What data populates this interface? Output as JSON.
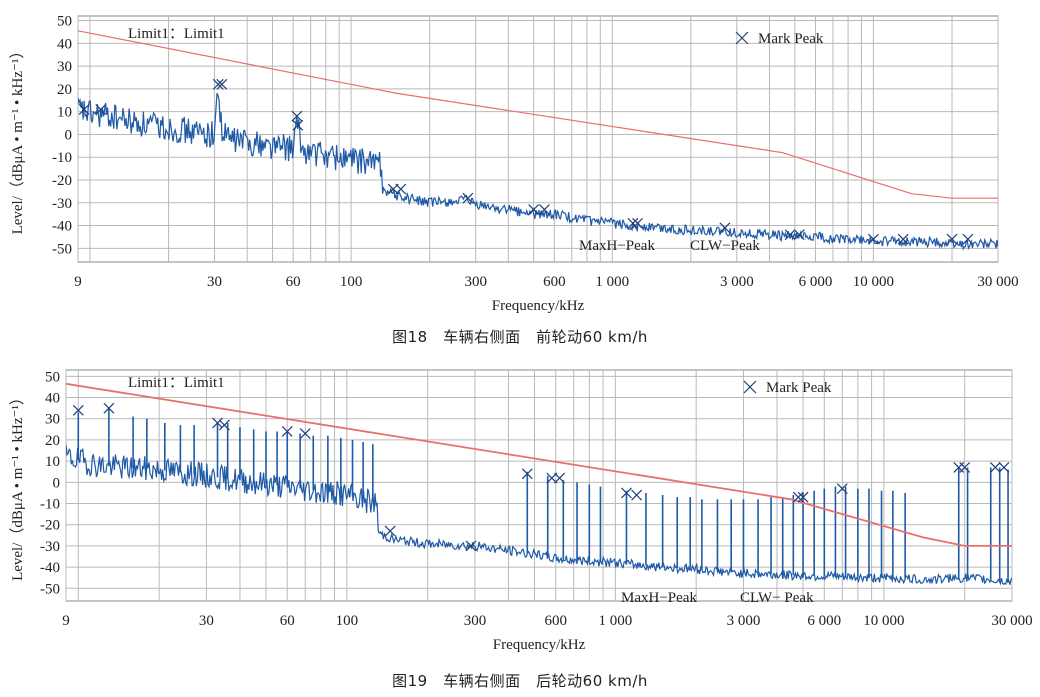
{
  "charts": [
    {
      "caption": "图18　车辆右侧面　前轮动60 km/h",
      "chart_data": {
        "type": "line",
        "x_scale": "log",
        "xlabel": "Frequency/kHz",
        "ylabel": "Level/（dBμA • m⁻¹ • kHz⁻¹）",
        "xlim": [
          9,
          30000
        ],
        "ylim": [
          -56,
          52
        ],
        "x_ticks": [
          9,
          30,
          60,
          100,
          300,
          600,
          1000,
          3000,
          6000,
          10000,
          30000
        ],
        "x_tick_labels": [
          "9",
          "30",
          "60",
          "100",
          "300",
          "600",
          "1 000",
          "3 000",
          "6 000",
          "10 000",
          "30 000"
        ],
        "y_ticks": [
          50,
          40,
          30,
          20,
          10,
          0,
          -10,
          -20,
          -30,
          -40,
          -50
        ],
        "grid": true,
        "series": [
          {
            "name": "Limit1: Limit1",
            "color": "#e8706a",
            "x": [
              9,
              150,
              4500,
              14000,
              20000,
              30000
            ],
            "y": [
              45.5,
              18,
              -8,
              -26,
              -28,
              -28
            ]
          },
          {
            "name": "MaxH-Peak / CLW-Peak",
            "color": "#1f5aa6",
            "x": [
              9,
              10,
              12,
              15,
              20,
              25,
              30,
              31,
              32,
              35,
              40,
              50,
              60,
              62,
              65,
              70,
              80,
              90,
              100,
              110,
              120,
              131,
              132,
              150,
              200,
              280,
              300,
              400,
              500,
              600,
              800,
              1000,
              1200,
              1500,
              2000,
              2700,
              3000,
              4000,
              5000,
              6000,
              8000,
              10000,
              15000,
              20000,
              25000,
              30000
            ],
            "y": [
              11,
              9,
              8,
              5,
              3,
              1,
              0,
              22,
              0,
              -2,
              -3,
              -5,
              -6,
              5,
              -7,
              -8,
              -9,
              -10,
              -11,
              -12,
              -12,
              -13,
              -24,
              -27,
              -30,
              -29,
              -31,
              -33,
              -35,
              -35,
              -38,
              -39,
              -40,
              -41,
              -42,
              -43,
              -43,
              -44,
              -45,
              -45,
              -46,
              -47,
              -47,
              -48,
              -48,
              -48
            ]
          }
        ],
        "peaks": [
          {
            "x": 9.5,
            "y": 11
          },
          {
            "x": 11,
            "y": 11
          },
          {
            "x": 31,
            "y": 22
          },
          {
            "x": 32,
            "y": 22
          },
          {
            "x": 62,
            "y": 8
          },
          {
            "x": 62.5,
            "y": 4
          },
          {
            "x": 145,
            "y": -24
          },
          {
            "x": 155,
            "y": -24
          },
          {
            "x": 280,
            "y": -28
          },
          {
            "x": 500,
            "y": -33
          },
          {
            "x": 550,
            "y": -33
          },
          {
            "x": 1200,
            "y": -39
          },
          {
            "x": 1250,
            "y": -39
          },
          {
            "x": 2700,
            "y": -41
          },
          {
            "x": 4800,
            "y": -44
          },
          {
            "x": 5200,
            "y": -44
          },
          {
            "x": 10000,
            "y": -46
          },
          {
            "x": 13000,
            "y": -46
          },
          {
            "x": 20000,
            "y": -46
          },
          {
            "x": 23000,
            "y": -46
          }
        ],
        "annotations": {
          "limit_label": "Limit1：Limit1",
          "mark_peak": "Mark Peak",
          "maxh": "MaxH−Peak",
          "clw": "CLW−Peak"
        }
      }
    },
    {
      "caption": "图19　车辆右侧面　后轮动60 km/h",
      "chart_data": {
        "type": "line",
        "x_scale": "log",
        "xlabel": "Frequency/kHz",
        "ylabel": "Level/（dBμA • m⁻¹ • kHz⁻¹）",
        "xlim": [
          9,
          30000
        ],
        "ylim": [
          -56,
          53
        ],
        "x_ticks": [
          9,
          30,
          60,
          100,
          300,
          600,
          1000,
          3000,
          6000,
          10000,
          30000
        ],
        "x_tick_labels": [
          "9",
          "30",
          "60",
          "100",
          "300",
          "600",
          "1 000",
          "3 000",
          "6 000",
          "10 000",
          "30 000"
        ],
        "y_ticks": [
          50,
          40,
          30,
          20,
          10,
          0,
          -10,
          -20,
          -30,
          -40,
          -50
        ],
        "grid": true,
        "series": [
          {
            "name": "Limit1: Limit1",
            "color": "#e8706a",
            "x": [
              9,
              4500,
              14000,
              20000,
              30000
            ],
            "y": [
              46.5,
              -8,
              -26,
              -30,
              -30
            ]
          },
          {
            "name": "MaxH-Peak / CLW-Peak",
            "color": "#1f5aa6",
            "x": [
              9,
              12,
              15,
              20,
              30,
              40,
              60,
              100,
              130,
              131,
              150,
              200,
              300,
              450,
              600,
              1000,
              1500,
              2000,
              3000,
              5000,
              8000,
              10000,
              15000,
              20000,
              25000,
              30000
            ],
            "y": [
              12,
              8,
              7,
              6,
              3,
              1,
              -2,
              -6,
              -10,
              -24,
              -27,
              -29,
              -30,
              -33,
              -36,
              -38,
              -40,
              -41,
              -43,
              -44,
              -45,
              -45,
              -46,
              -45,
              -46,
              -47
            ]
          }
        ],
        "peaks": [
          {
            "x": 10,
            "y": 34
          },
          {
            "x": 13,
            "y": 35
          },
          {
            "x": 33,
            "y": 28
          },
          {
            "x": 35,
            "y": 27
          },
          {
            "x": 60,
            "y": 24
          },
          {
            "x": 70,
            "y": 23
          },
          {
            "x": 145,
            "y": -23
          },
          {
            "x": 290,
            "y": -30
          },
          {
            "x": 470,
            "y": 4
          },
          {
            "x": 580,
            "y": 2
          },
          {
            "x": 620,
            "y": 2
          },
          {
            "x": 1100,
            "y": -5
          },
          {
            "x": 1200,
            "y": -6
          },
          {
            "x": 4800,
            "y": -7
          },
          {
            "x": 5000,
            "y": -7
          },
          {
            "x": 7000,
            "y": -3
          },
          {
            "x": 19000,
            "y": 7
          },
          {
            "x": 20000,
            "y": 7
          },
          {
            "x": 26000,
            "y": 7
          },
          {
            "x": 28000,
            "y": 7
          }
        ],
        "spikes": [
          {
            "x": 10,
            "top": 33
          },
          {
            "x": 13,
            "top": 35
          },
          {
            "x": 16,
            "top": 31
          },
          {
            "x": 18,
            "top": 30
          },
          {
            "x": 21,
            "top": 28
          },
          {
            "x": 24,
            "top": 27
          },
          {
            "x": 27,
            "top": 27
          },
          {
            "x": 33,
            "top": 28
          },
          {
            "x": 36,
            "top": 28
          },
          {
            "x": 40,
            "top": 26
          },
          {
            "x": 45,
            "top": 25
          },
          {
            "x": 50,
            "top": 24
          },
          {
            "x": 55,
            "top": 24
          },
          {
            "x": 60,
            "top": 24
          },
          {
            "x": 67,
            "top": 23
          },
          {
            "x": 75,
            "top": 22
          },
          {
            "x": 85,
            "top": 22
          },
          {
            "x": 95,
            "top": 21
          },
          {
            "x": 105,
            "top": 20
          },
          {
            "x": 115,
            "top": 19
          },
          {
            "x": 125,
            "top": 18
          },
          {
            "x": 470,
            "top": 5
          },
          {
            "x": 560,
            "top": 3
          },
          {
            "x": 640,
            "top": 1
          },
          {
            "x": 720,
            "top": 0
          },
          {
            "x": 800,
            "top": -1
          },
          {
            "x": 880,
            "top": -2
          },
          {
            "x": 1100,
            "top": -4
          },
          {
            "x": 1300,
            "top": -5
          },
          {
            "x": 1500,
            "top": -6
          },
          {
            "x": 1700,
            "top": -7
          },
          {
            "x": 1900,
            "top": -7
          },
          {
            "x": 2100,
            "top": -8
          },
          {
            "x": 2400,
            "top": -8
          },
          {
            "x": 2700,
            "top": -8
          },
          {
            "x": 3000,
            "top": -8
          },
          {
            "x": 3400,
            "top": -8
          },
          {
            "x": 3800,
            "top": -7
          },
          {
            "x": 4200,
            "top": -7
          },
          {
            "x": 4600,
            "top": -6
          },
          {
            "x": 5000,
            "top": -5
          },
          {
            "x": 5500,
            "top": -4
          },
          {
            "x": 6000,
            "top": -3
          },
          {
            "x": 6600,
            "top": -2
          },
          {
            "x": 7200,
            "top": -2
          },
          {
            "x": 8000,
            "top": -3
          },
          {
            "x": 8800,
            "top": -3
          },
          {
            "x": 9800,
            "top": -4
          },
          {
            "x": 10800,
            "top": -4
          },
          {
            "x": 12000,
            "top": -5
          },
          {
            "x": 19000,
            "top": 7
          },
          {
            "x": 20500,
            "top": 7
          },
          {
            "x": 25000,
            "top": 7
          },
          {
            "x": 27000,
            "top": 7
          },
          {
            "x": 29000,
            "top": 6
          }
        ],
        "annotations": {
          "limit_label": "Limit1：Limit1",
          "mark_peak": "Mark Peak",
          "maxh": "MaxH−Peak",
          "clw": "CLW− Peak"
        }
      }
    }
  ]
}
